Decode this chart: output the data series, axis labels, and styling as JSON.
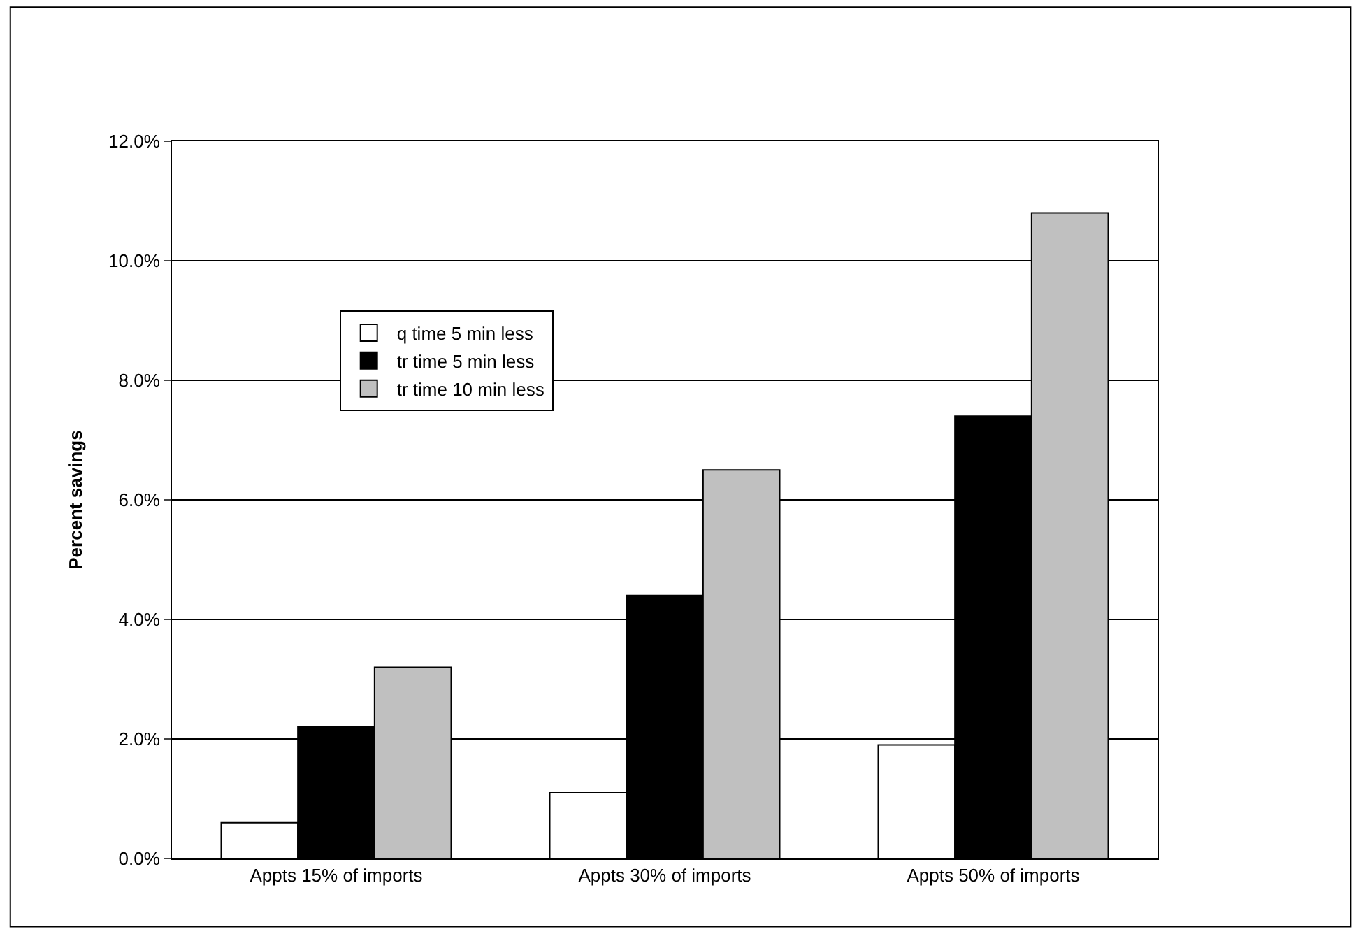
{
  "chart_data": {
    "type": "bar",
    "ylabel": "Percent savings",
    "categories": [
      "Appts 15% of imports",
      "Appts 30% of imports",
      "Appts 50% of imports"
    ],
    "series": [
      {
        "name": "q time 5 min less",
        "color": "#ffffff",
        "values": [
          0.6,
          1.1,
          1.9
        ]
      },
      {
        "name": "tr time 5 min less",
        "color": "#000000",
        "values": [
          2.2,
          4.4,
          7.4
        ]
      },
      {
        "name": "tr time 10 min less",
        "color": "#c0c0c0",
        "values": [
          3.2,
          6.5,
          10.8
        ]
      }
    ],
    "ylim": [
      0,
      12
    ],
    "yticks": [
      {
        "value": 0,
        "label": "0.0%"
      },
      {
        "value": 2,
        "label": "2.0%"
      },
      {
        "value": 4,
        "label": "4.0%"
      },
      {
        "value": 6,
        "label": "6.0%"
      },
      {
        "value": 8,
        "label": "8.0%"
      },
      {
        "value": 10,
        "label": "10.0%"
      },
      {
        "value": 12,
        "label": "12.0%"
      }
    ],
    "grid": "y",
    "legend": "top left"
  }
}
